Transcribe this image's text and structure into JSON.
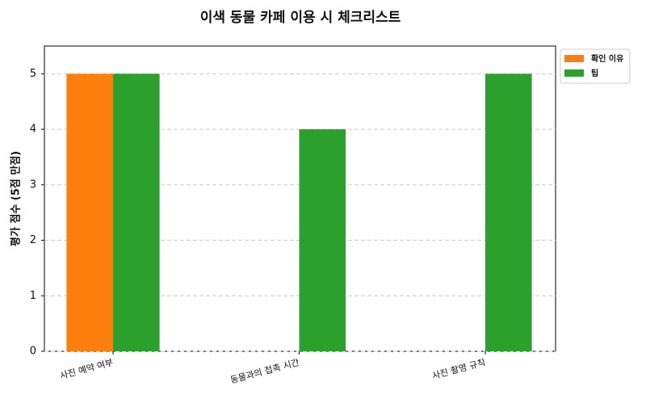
{
  "chart_data": {
    "type": "bar",
    "title": "이색 동물 카페 이용 시 체크리스트",
    "ylabel": "평가 점수 (5점 만점)",
    "categories": [
      "사진 예약 여부",
      "동물과의 접촉 시간",
      "사진 촬영 규칙"
    ],
    "series": [
      {
        "name": "확인 이유",
        "color": "#ff7f0e",
        "values": [
          5,
          0,
          0
        ]
      },
      {
        "name": "팁",
        "color": "#2ca02c",
        "values": [
          5,
          4,
          5
        ]
      }
    ],
    "ylim": [
      0,
      5.5
    ],
    "yticks": [
      0,
      1,
      2,
      3,
      4,
      5
    ],
    "grid": true,
    "legend": "upper right outside"
  }
}
